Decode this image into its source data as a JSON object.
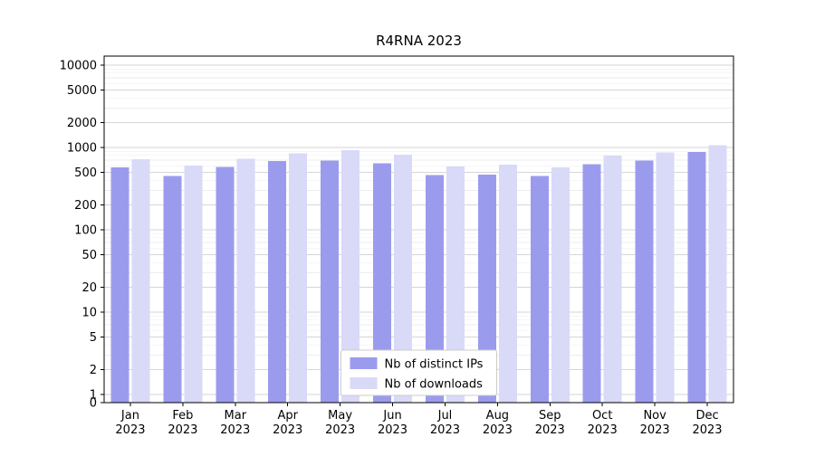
{
  "chart_data": {
    "type": "bar",
    "title": "R4RNA 2023",
    "yscale": "symlog",
    "grid": true,
    "legend_position": "lower center",
    "ylim": [
      0,
      13000
    ],
    "yticks": [
      0,
      1,
      2,
      5,
      10,
      20,
      50,
      100,
      200,
      500,
      1000,
      2000,
      5000,
      10000
    ],
    "categories": [
      [
        "Jan",
        "2023"
      ],
      [
        "Feb",
        "2023"
      ],
      [
        "Mar",
        "2023"
      ],
      [
        "Apr",
        "2023"
      ],
      [
        "May",
        "2023"
      ],
      [
        "Jun",
        "2023"
      ],
      [
        "Jul",
        "2023"
      ],
      [
        "Aug",
        "2023"
      ],
      [
        "Sep",
        "2023"
      ],
      [
        "Oct",
        "2023"
      ],
      [
        "Nov",
        "2023"
      ],
      [
        "Dec",
        "2023"
      ]
    ],
    "series": [
      {
        "name": "Nb of distinct IPs",
        "color": "#9b9bee",
        "values": [
          570,
          450,
          580,
          680,
          690,
          640,
          460,
          470,
          450,
          630,
          690,
          880
        ]
      },
      {
        "name": "Nb of downloads",
        "color": "#d9d9f8",
        "values": [
          720,
          600,
          730,
          850,
          930,
          820,
          590,
          620,
          570,
          800,
          870,
          1060
        ]
      }
    ]
  }
}
